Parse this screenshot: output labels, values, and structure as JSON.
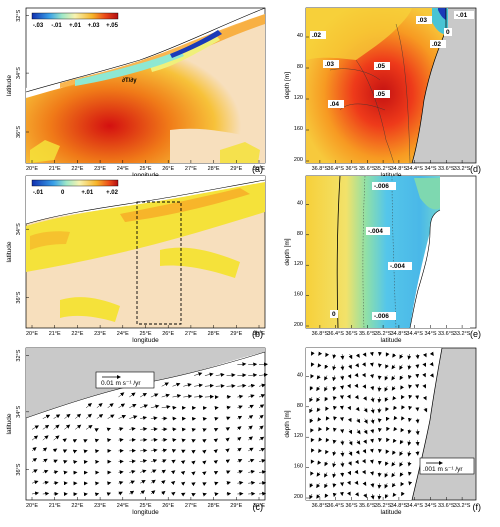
{
  "colors": {
    "land": "#f5d9b5",
    "coast_grey": "#c9c9c9",
    "neutral": "#f7dfbd"
  },
  "chart_data": [
    {
      "id": "a",
      "type": "heatmap",
      "panel_label": "(a)",
      "xlabel": "longitude",
      "ylabel": "latitude",
      "x_ticks": [
        "20°E",
        "21°E",
        "22°E",
        "23°E",
        "24°E",
        "25°E",
        "26°E",
        "27°E",
        "28°E",
        "29°E",
        "30°E"
      ],
      "y_ticks": [
        "32°S",
        "34°S",
        "36°S"
      ],
      "colorbar": [
        "-.03",
        "-.01",
        "+.01",
        "+.03",
        "+.05"
      ],
      "annotation": "∂T/∂y"
    },
    {
      "id": "b",
      "type": "heatmap",
      "panel_label": "(b)",
      "xlabel": "longitude",
      "ylabel": "latitude",
      "x_ticks": [
        "20°E",
        "21°E",
        "22°E",
        "23°E",
        "24°E",
        "25°E",
        "26°E",
        "27°E",
        "28°E",
        "29°E",
        "30°E"
      ],
      "y_ticks": [
        "34°S",
        "36°S"
      ],
      "colorbar": [
        "-.01",
        "0",
        "+.01",
        "+.02"
      ]
    },
    {
      "id": "c",
      "type": "vector",
      "panel_label": "(c)",
      "xlabel": "longitude",
      "ylabel": "latitude",
      "x_ticks": [
        "20°E",
        "21°E",
        "22°E",
        "23°E",
        "24°E",
        "25°E",
        "26°E",
        "27°E",
        "28°E",
        "29°E",
        "30°E"
      ],
      "y_ticks": [
        "32°S",
        "34°S",
        "36°S"
      ],
      "legend": "0.01 m s⁻¹ /yr"
    },
    {
      "id": "d",
      "type": "heatmap",
      "panel_label": "(d)",
      "xlabel": "latitude",
      "ylabel": "depth [m]",
      "x_ticks": [
        "36.8°S",
        "36.4°S",
        "36°S",
        "35.6°S",
        "35.2°S",
        "34.8°S",
        "34.4°S",
        "34°S",
        "33.6°S",
        "33.2°S"
      ],
      "y_ticks": [
        "40",
        "80",
        "120",
        "160",
        "200"
      ],
      "contour_labels": [
        ".02",
        ".03",
        "-.01",
        "0",
        ".02",
        ".03",
        ".05",
        ".05",
        ".04"
      ]
    },
    {
      "id": "e",
      "type": "heatmap",
      "panel_label": "(e)",
      "xlabel": "latitude",
      "ylabel": "depth [m]",
      "x_ticks": [
        "36.8°S",
        "36.4°S",
        "36°S",
        "35.6°S",
        "35.2°S",
        "34.8°S",
        "34.4°S",
        "34°S",
        "33.6°S",
        "33.2°S"
      ],
      "y_ticks": [
        "40",
        "80",
        "120",
        "160",
        "200"
      ],
      "contour_labels": [
        "-.006",
        "-.004",
        "-.004",
        "0",
        "-.006"
      ]
    },
    {
      "id": "f",
      "type": "vector",
      "panel_label": "(f)",
      "xlabel": "latitude",
      "ylabel": "depth [m]",
      "x_ticks": [
        "36.8°S",
        "36.4°S",
        "36°S",
        "35.6°S",
        "35.2°S",
        "34.8°S",
        "34.4°S",
        "34°S",
        "33.6°S",
        "33.2°S"
      ],
      "y_ticks": [
        "40",
        "80",
        "120",
        "160",
        "200"
      ],
      "legend": ".001 m s⁻¹ /yr"
    }
  ]
}
